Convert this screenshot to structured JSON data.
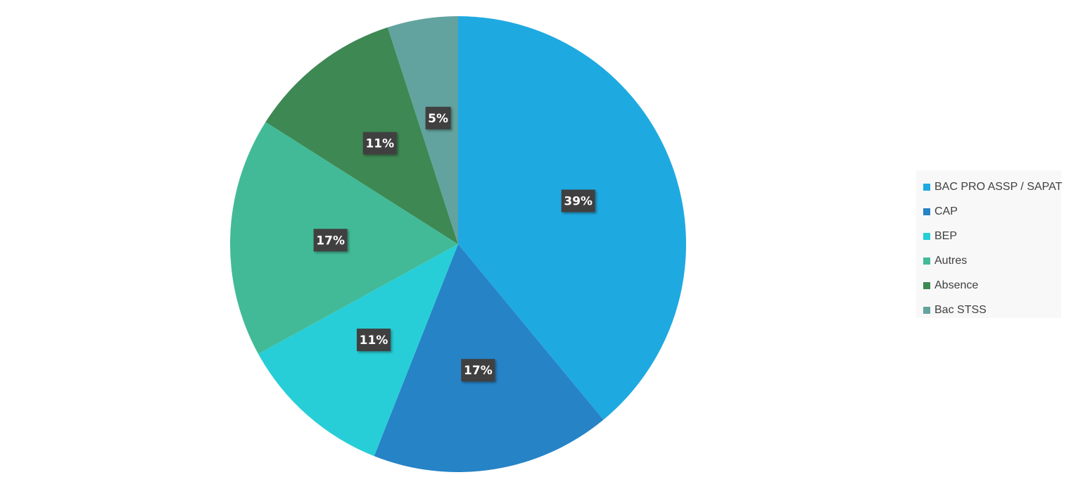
{
  "chart_data": {
    "type": "pie",
    "title": "",
    "categories": [
      "BAC PRO ASSP / SAPAT",
      "CAP",
      "BEP",
      "Autres",
      "Absence",
      "Bac STSS"
    ],
    "values": [
      39,
      17,
      11,
      17,
      11,
      5
    ],
    "labels": [
      "39%",
      "17%",
      "11%",
      "17%",
      "11%",
      "5%"
    ],
    "colors": [
      "#1FA9E1",
      "#2683C6",
      "#27CED7",
      "#42BA97",
      "#3E8853",
      "#62A39F"
    ],
    "start_angle_deg": 0,
    "direction": "clockwise",
    "legend_position": "right"
  },
  "legend": {
    "items": [
      {
        "label": "BAC PRO ASSP / SAPAT",
        "color": "#1FA9E1"
      },
      {
        "label": "CAP",
        "color": "#2683C6"
      },
      {
        "label": "BEP",
        "color": "#27CED7"
      },
      {
        "label": "Autres",
        "color": "#42BA97"
      },
      {
        "label": "Absence",
        "color": "#3E8853"
      },
      {
        "label": "Bac STSS",
        "color": "#62A39F"
      }
    ]
  }
}
